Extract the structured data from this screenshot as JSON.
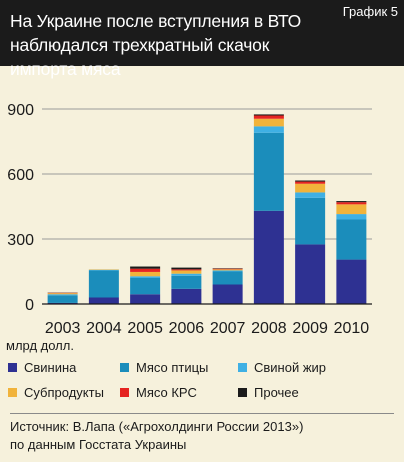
{
  "header": {
    "title_line1": "На Украине после вступления в ВТО",
    "title_line2": "наблюдался трехкратный скачок импорта мяса",
    "chart_label": "График 5"
  },
  "chart_data": {
    "type": "bar",
    "stacked": true,
    "categories": [
      "2003",
      "2004",
      "2005",
      "2006",
      "2007",
      "2008",
      "2009",
      "2010"
    ],
    "ylabel": "млрд долл.",
    "ylim": [
      0,
      900
    ],
    "yticks": [
      0,
      300,
      600,
      900
    ],
    "grid": true,
    "series": [
      {
        "name": "Свинина",
        "color": "#2e3192",
        "values": [
          5,
          30,
          45,
          70,
          90,
          430,
          275,
          205
        ]
      },
      {
        "name": "Мясо птицы",
        "color": "#1b8dbb",
        "values": [
          35,
          125,
          75,
          60,
          60,
          360,
          215,
          185
        ]
      },
      {
        "name": "Свиной жир",
        "color": "#3fb0e4",
        "values": [
          5,
          3,
          8,
          10,
          5,
          30,
          25,
          25
        ]
      },
      {
        "name": "Субпродукты",
        "color": "#f1b33b",
        "values": [
          5,
          2,
          20,
          15,
          5,
          35,
          40,
          45
        ]
      },
      {
        "name": "Мясо КРС",
        "color": "#e52421",
        "values": [
          2,
          0,
          15,
          5,
          3,
          15,
          10,
          10
        ]
      },
      {
        "name": "Прочее",
        "color": "#1b1b1b",
        "values": [
          1,
          0,
          10,
          8,
          2,
          5,
          5,
          5
        ]
      }
    ]
  },
  "source": {
    "line1": "Источник: В.Лапа («Агрохолдинги России 2013»)",
    "line2": "по данным Госстата Украины"
  }
}
